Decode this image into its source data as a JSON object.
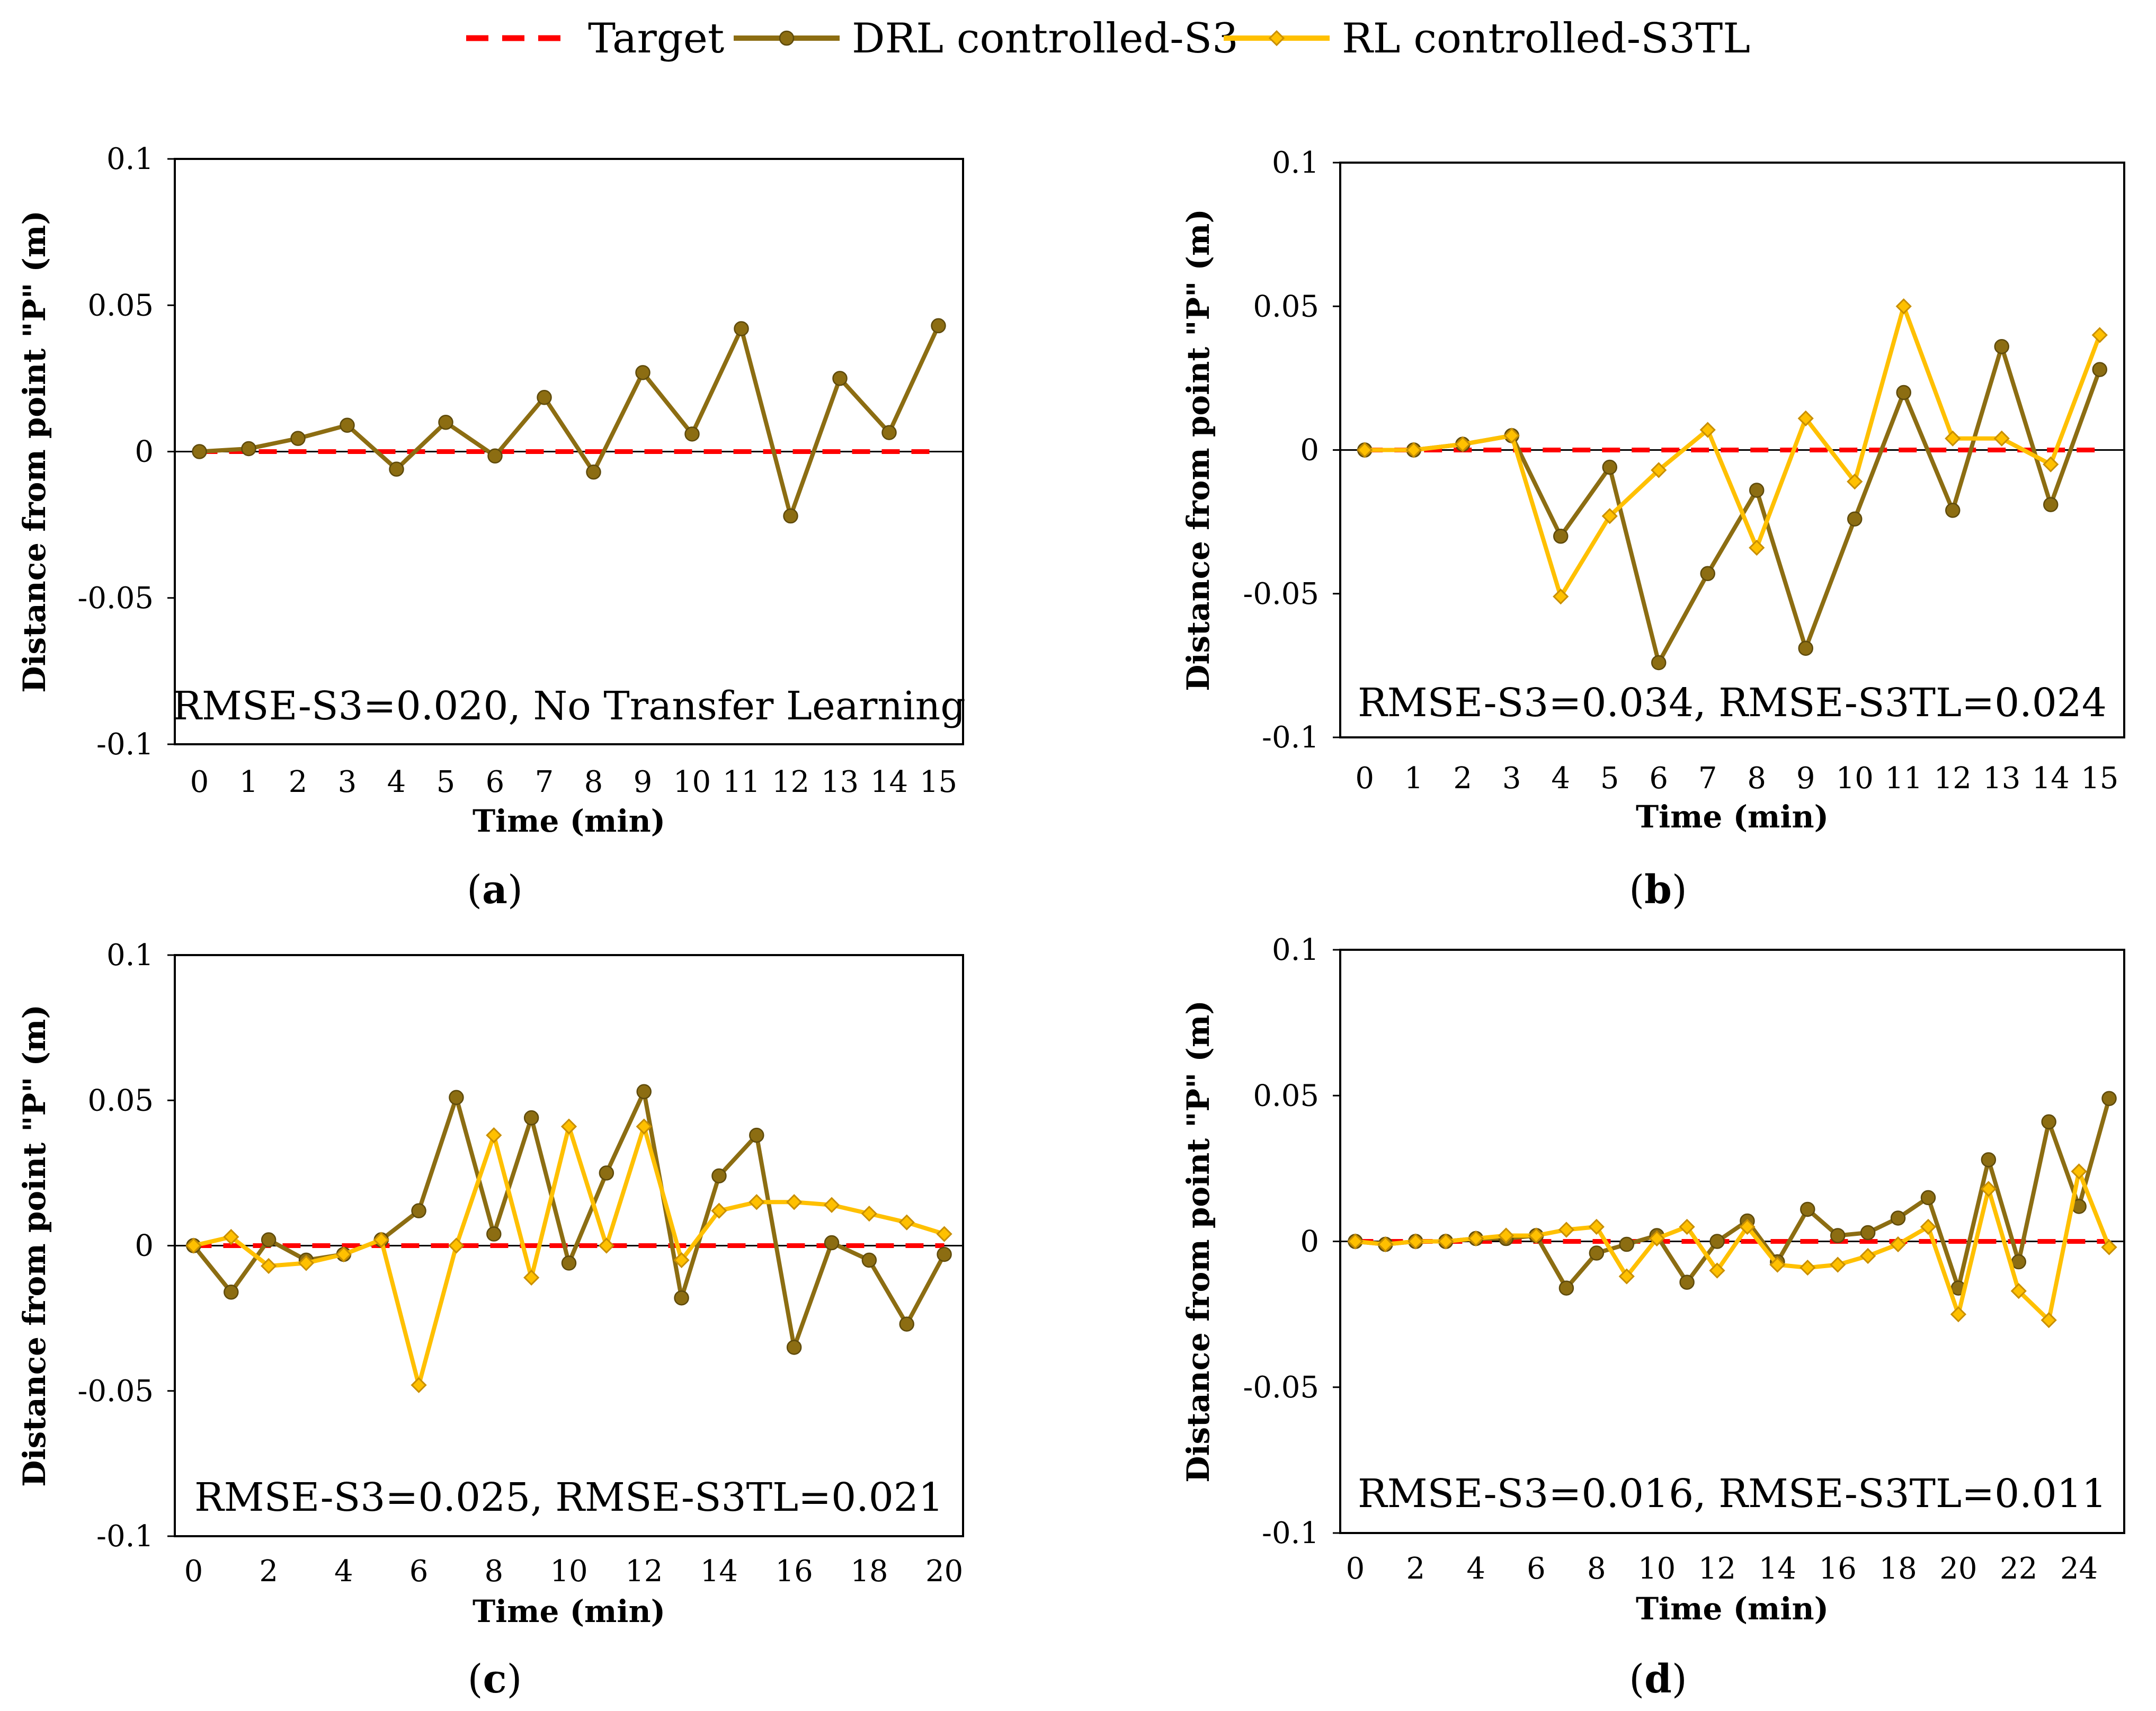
{
  "legend": [
    {
      "name": "Target",
      "color": "#ff0000",
      "style": "dashed"
    },
    {
      "name": "DRL controlled-S3",
      "color": "#8c6d12",
      "marker": "circle"
    },
    {
      "name": "RL controlled-S3TL",
      "color": "#ffc000",
      "marker": "diamond"
    }
  ],
  "chart_data": [
    {
      "panel": "a",
      "type": "line",
      "xlabel": "Time (min)",
      "ylabel": "Distance from point \"P\" (m)",
      "ylim": [
        -0.1,
        0.1
      ],
      "yticks": [
        0.1,
        0.05,
        0,
        -0.05,
        -0.1
      ],
      "yticklabels": [
        "0.1",
        "0.05",
        "0",
        "-0.05",
        "-0.1"
      ],
      "xlim": [
        -0.5,
        15.5
      ],
      "xticks": [
        0,
        1,
        2,
        3,
        4,
        5,
        6,
        7,
        8,
        9,
        10,
        11,
        12,
        13,
        14,
        15
      ],
      "xticklabels": [
        "0",
        "1",
        "2",
        "3",
        "4",
        "5",
        "6",
        "7",
        "8",
        "9",
        "10",
        "11",
        "12",
        "13",
        "14",
        "15"
      ],
      "annotation": "RMSE-S3=0.020, No Transfer Learning",
      "caption": "(a)",
      "series": [
        {
          "name": "Target",
          "x": [
            0,
            15
          ],
          "values": [
            0,
            0
          ]
        },
        {
          "name": "DRL controlled-S3",
          "x": [
            0,
            1,
            2,
            3,
            4,
            5,
            6,
            7,
            8,
            9,
            10,
            11,
            12,
            13,
            14,
            15
          ],
          "values": [
            0,
            0.001,
            0.0045,
            0.009,
            -0.006,
            0.01,
            -0.0015,
            0.0185,
            -0.007,
            0.027,
            0.006,
            0.042,
            -0.022,
            0.025,
            0.0065,
            0.043
          ]
        }
      ]
    },
    {
      "panel": "b",
      "type": "line",
      "xlabel": "Time (min)",
      "ylabel": "Distance from point \"P\" (m)",
      "ylim": [
        -0.1,
        0.1
      ],
      "yticks": [
        0.1,
        0.05,
        0,
        -0.05,
        -0.1
      ],
      "yticklabels": [
        "0.1",
        "0.05",
        "0",
        "-0.05",
        "-0.1"
      ],
      "xlim": [
        -0.5,
        15.5
      ],
      "xticks": [
        0,
        1,
        2,
        3,
        4,
        5,
        6,
        7,
        8,
        9,
        10,
        11,
        12,
        13,
        14,
        15
      ],
      "xticklabels": [
        "0",
        "1",
        "2",
        "3",
        "4",
        "5",
        "6",
        "7",
        "8",
        "9",
        "10",
        "11",
        "12",
        "13",
        "14",
        "15"
      ],
      "annotation": "RMSE-S3=0.034, RMSE-S3TL=0.024",
      "caption": "(b)",
      "series": [
        {
          "name": "Target",
          "x": [
            0,
            15
          ],
          "values": [
            0,
            0
          ]
        },
        {
          "name": "DRL controlled-S3",
          "x": [
            0,
            1,
            2,
            3,
            4,
            5,
            6,
            7,
            8,
            9,
            10,
            11,
            12,
            13,
            14,
            15
          ],
          "values": [
            0,
            0,
            0.002,
            0.005,
            -0.03,
            -0.006,
            -0.074,
            -0.043,
            -0.014,
            -0.069,
            -0.024,
            0.02,
            -0.021,
            0.036,
            -0.019,
            0.028
          ]
        },
        {
          "name": "RL controlled-S3TL",
          "x": [
            0,
            1,
            2,
            3,
            4,
            5,
            6,
            7,
            8,
            9,
            10,
            11,
            12,
            13,
            14,
            15
          ],
          "values": [
            0,
            0,
            0.002,
            0.005,
            -0.051,
            -0.023,
            -0.007,
            0.007,
            -0.034,
            0.011,
            -0.011,
            0.05,
            0.004,
            0.004,
            -0.005,
            0.04
          ]
        }
      ]
    },
    {
      "panel": "c",
      "type": "line",
      "xlabel": "Time (min)",
      "ylabel": "Distance from point \"P\" (m)",
      "ylim": [
        -0.1,
        0.1
      ],
      "yticks": [
        0.1,
        0.05,
        0,
        -0.05,
        -0.1
      ],
      "yticklabels": [
        "0.1",
        "0.05",
        "0",
        "-0.05",
        "-0.1"
      ],
      "xlim": [
        -0.5,
        20.5
      ],
      "xticks": [
        0,
        2,
        4,
        6,
        8,
        10,
        12,
        14,
        16,
        18,
        20
      ],
      "xticklabels": [
        "0",
        "2",
        "4",
        "6",
        "8",
        "10",
        "12",
        "14",
        "16",
        "18",
        "20"
      ],
      "annotation": "RMSE-S3=0.025, RMSE-S3TL=0.021",
      "caption": "(c)",
      "series": [
        {
          "name": "Target",
          "x": [
            0,
            20
          ],
          "values": [
            0,
            0
          ]
        },
        {
          "name": "DRL controlled-S3",
          "x": [
            0,
            1,
            2,
            3,
            4,
            5,
            6,
            7,
            8,
            9,
            10,
            11,
            12,
            13,
            14,
            15,
            16,
            17,
            18,
            19,
            20
          ],
          "values": [
            0,
            -0.016,
            0.002,
            -0.005,
            -0.003,
            0.002,
            0.012,
            0.051,
            0.004,
            0.044,
            -0.006,
            0.025,
            0.053,
            -0.018,
            0.024,
            0.038,
            -0.035,
            0.001,
            -0.005,
            -0.027,
            -0.003
          ]
        },
        {
          "name": "RL controlled-S3TL",
          "x": [
            0,
            1,
            2,
            3,
            4,
            5,
            6,
            7,
            8,
            9,
            10,
            11,
            12,
            13,
            14,
            15,
            16,
            17,
            18,
            19,
            20
          ],
          "values": [
            0,
            0.003,
            -0.007,
            -0.006,
            -0.003,
            0.002,
            -0.048,
            0,
            0.038,
            -0.011,
            0.041,
            0,
            0.041,
            -0.005,
            0.012,
            0.015,
            0.015,
            0.014,
            0.011,
            0.008,
            0.004
          ]
        }
      ]
    },
    {
      "panel": "d",
      "type": "line",
      "xlabel": "Time (min)",
      "ylabel": "Distance from point \"P\" (m)",
      "ylim": [
        -0.1,
        0.1
      ],
      "yticks": [
        0.1,
        0.05,
        0,
        -0.05,
        -0.1
      ],
      "yticklabels": [
        "0.1",
        "0.05",
        "0",
        "-0.05",
        "-0.1"
      ],
      "xlim": [
        -0.5,
        25.5
      ],
      "xticks": [
        0,
        2,
        4,
        6,
        8,
        10,
        12,
        14,
        16,
        18,
        20,
        22,
        24
      ],
      "xticklabels": [
        "0",
        "2",
        "4",
        "6",
        "8",
        "10",
        "12",
        "14",
        "16",
        "18",
        "20",
        "22",
        "24"
      ],
      "annotation": "RMSE-S3=0.016, RMSE-S3TL=0.011",
      "caption": "(d)",
      "series": [
        {
          "name": "Target",
          "x": [
            0,
            25
          ],
          "values": [
            0,
            0
          ]
        },
        {
          "name": "DRL controlled-S3",
          "x": [
            0,
            1,
            2,
            3,
            4,
            5,
            6,
            7,
            8,
            9,
            10,
            11,
            12,
            13,
            14,
            15,
            16,
            17,
            18,
            19,
            20,
            21,
            22,
            23,
            24,
            25
          ],
          "values": [
            0,
            -0.001,
            0,
            0,
            0.001,
            0.001,
            0.002,
            -0.016,
            -0.004,
            -0.001,
            0.002,
            -0.014,
            0,
            0.007,
            -0.007,
            0.011,
            0.002,
            0.003,
            0.008,
            0.015,
            -0.016,
            0.028,
            -0.007,
            0.041,
            0.012,
            0.049
          ]
        },
        {
          "name": "RL controlled-S3TL",
          "x": [
            0,
            1,
            2,
            3,
            4,
            5,
            6,
            7,
            8,
            9,
            10,
            11,
            12,
            13,
            14,
            15,
            16,
            17,
            18,
            19,
            20,
            21,
            22,
            23,
            24,
            25
          ],
          "values": [
            0,
            -0.001,
            0,
            0,
            0.001,
            0.002,
            0.002,
            0.004,
            0.005,
            -0.012,
            0.001,
            0.005,
            -0.01,
            0.005,
            -0.008,
            -0.009,
            -0.008,
            -0.005,
            -0.001,
            0.005,
            -0.025,
            0.018,
            -0.017,
            -0.027,
            0.024,
            -0.002
          ]
        }
      ]
    }
  ]
}
